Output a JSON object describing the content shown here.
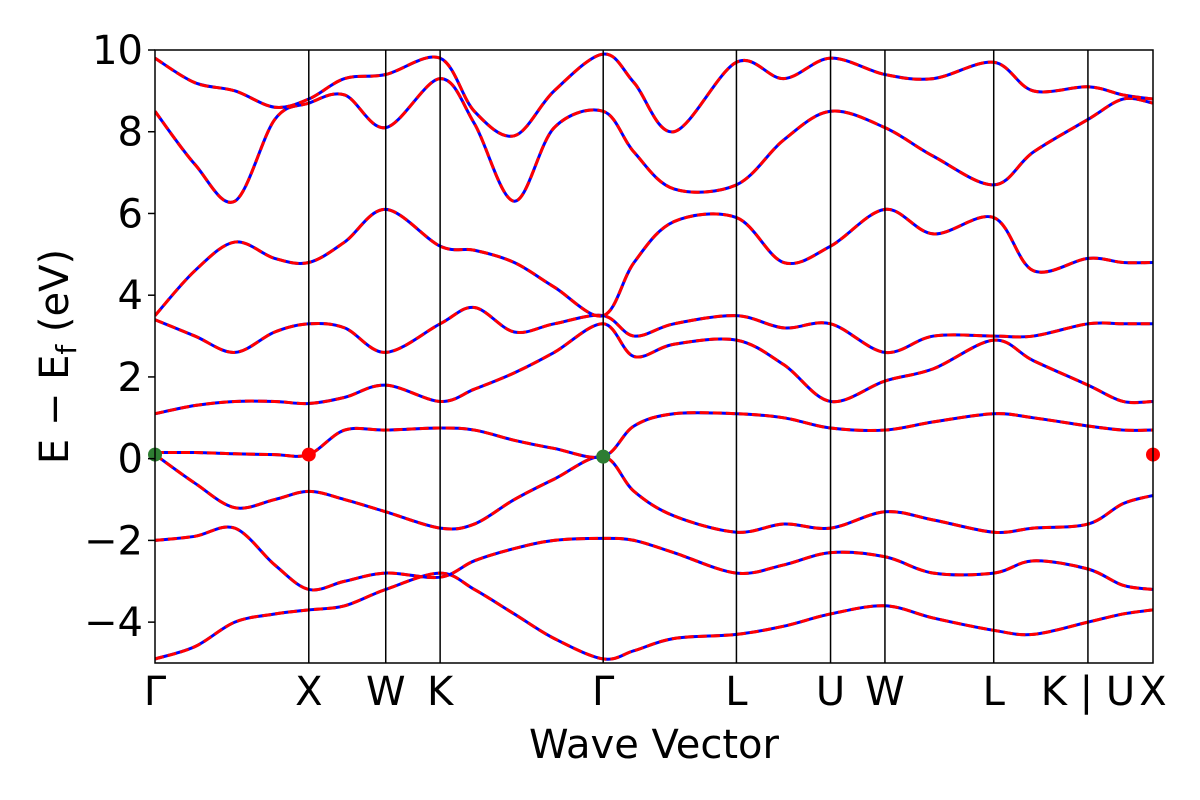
{
  "chart_data": {
    "type": "line",
    "title": "",
    "xlabel": "Wave Vector",
    "ylabel": "E − E",
    "ylabel_subscript": "f",
    "ylabel_unit": " (eV)",
    "ylim": [
      -5,
      10
    ],
    "yticks": [
      -4,
      -2,
      0,
      2,
      4,
      6,
      8,
      10
    ],
    "yticklabels": [
      "−4",
      "−2",
      "0",
      "2",
      "4",
      "6",
      "8",
      "10"
    ],
    "xlim": [
      0,
      1
    ],
    "kpoints": [
      {
        "label": "Γ",
        "x": 0.0
      },
      {
        "label": "X",
        "x": 0.1541
      },
      {
        "label": "W",
        "x": 0.2312
      },
      {
        "label": "K",
        "x": 0.2857
      },
      {
        "label": "Γ",
        "x": 0.4491
      },
      {
        "label": "L",
        "x": 0.5826
      },
      {
        "label": "U",
        "x": 0.6769
      },
      {
        "label": "W",
        "x": 0.7314
      },
      {
        "label": "L",
        "x": 0.8404
      },
      {
        "label": "K | U",
        "x": 0.9348
      },
      {
        "label": "X",
        "x": 1.0
      }
    ],
    "line_colors": {
      "red": "#ff0000",
      "blue": "#0000ff",
      "grid": "#000000"
    },
    "extrema_markers": [
      {
        "name": "vbm-gamma",
        "x": 0.0,
        "y": 0.1,
        "color": "#2e7d32"
      },
      {
        "name": "cbm-x",
        "x": 0.1541,
        "y": 0.1,
        "color": "#ff0000"
      },
      {
        "name": "vbm-gamma-mid",
        "x": 0.4491,
        "y": 0.05,
        "color": "#2e7d32"
      },
      {
        "name": "cbm-x-end",
        "x": 1.0,
        "y": 0.1,
        "color": "#ff0000"
      }
    ],
    "series": [
      {
        "x": [
          0,
          0.04,
          0.08,
          0.12,
          0.1541,
          0.19,
          0.2312,
          0.2857,
          0.32,
          0.36,
          0.4,
          0.4491,
          0.48,
          0.52,
          0.5826,
          0.63,
          0.6769,
          0.7314,
          0.78,
          0.8404,
          0.88,
          0.9348,
          0.97,
          1.0
        ],
        "y": [
          -4.9,
          -4.6,
          -4.0,
          -3.8,
          -3.7,
          -3.6,
          -3.2,
          -2.8,
          -3.2,
          -3.8,
          -4.4,
          -4.9,
          -4.7,
          -4.4,
          -4.3,
          -4.1,
          -3.8,
          -3.6,
          -3.9,
          -4.2,
          -4.3,
          -4.0,
          -3.8,
          -3.7
        ]
      },
      {
        "x": [
          0,
          0.04,
          0.08,
          0.12,
          0.1541,
          0.19,
          0.2312,
          0.2857,
          0.32,
          0.36,
          0.4,
          0.4491,
          0.48,
          0.52,
          0.5826,
          0.63,
          0.6769,
          0.7314,
          0.78,
          0.8404,
          0.88,
          0.9348,
          0.97,
          1.0
        ],
        "y": [
          -2.0,
          -1.9,
          -1.7,
          -2.6,
          -3.2,
          -3.0,
          -2.8,
          -2.9,
          -2.5,
          -2.2,
          -2.0,
          -1.95,
          -2.0,
          -2.3,
          -2.8,
          -2.6,
          -2.3,
          -2.4,
          -2.8,
          -2.8,
          -2.5,
          -2.7,
          -3.1,
          -3.2
        ]
      },
      {
        "x": [
          0,
          0.04,
          0.08,
          0.12,
          0.1541,
          0.19,
          0.2312,
          0.2857,
          0.32,
          0.36,
          0.4,
          0.4491,
          0.48,
          0.52,
          0.5826,
          0.63,
          0.6769,
          0.7314,
          0.78,
          0.8404,
          0.88,
          0.9348,
          0.97,
          1.0
        ],
        "y": [
          0.1,
          -0.6,
          -1.2,
          -1.0,
          -0.8,
          -1.0,
          -1.3,
          -1.7,
          -1.6,
          -1.0,
          -0.5,
          0.05,
          -0.8,
          -1.4,
          -1.8,
          -1.6,
          -1.7,
          -1.3,
          -1.5,
          -1.8,
          -1.7,
          -1.6,
          -1.1,
          -0.9
        ]
      },
      {
        "x": [
          0,
          0.04,
          0.08,
          0.12,
          0.1541,
          0.19,
          0.2312,
          0.2857,
          0.32,
          0.36,
          0.4,
          0.4491,
          0.48,
          0.52,
          0.5826,
          0.63,
          0.6769,
          0.7314,
          0.78,
          0.8404,
          0.88,
          0.9348,
          0.97,
          1.0
        ],
        "y": [
          0.15,
          0.15,
          0.12,
          0.1,
          0.1,
          0.7,
          0.7,
          0.75,
          0.7,
          0.45,
          0.25,
          0.05,
          0.8,
          1.1,
          1.1,
          1.0,
          0.75,
          0.7,
          0.9,
          1.1,
          1.0,
          0.8,
          0.7,
          0.7
        ]
      },
      {
        "x": [
          0,
          0.04,
          0.08,
          0.12,
          0.1541,
          0.19,
          0.2312,
          0.2857,
          0.32,
          0.36,
          0.4,
          0.4491,
          0.48,
          0.52,
          0.5826,
          0.63,
          0.6769,
          0.7314,
          0.78,
          0.8404,
          0.88,
          0.9348,
          0.97,
          1.0
        ],
        "y": [
          1.1,
          1.3,
          1.4,
          1.4,
          1.35,
          1.5,
          1.8,
          1.4,
          1.7,
          2.1,
          2.6,
          3.3,
          2.5,
          2.8,
          2.9,
          2.3,
          1.4,
          1.9,
          2.2,
          2.9,
          2.4,
          1.8,
          1.4,
          1.4
        ]
      },
      {
        "x": [
          0,
          0.04,
          0.08,
          0.12,
          0.1541,
          0.19,
          0.2312,
          0.2857,
          0.32,
          0.36,
          0.4,
          0.4491,
          0.48,
          0.52,
          0.5826,
          0.63,
          0.6769,
          0.7314,
          0.78,
          0.8404,
          0.88,
          0.9348,
          0.97,
          1.0
        ],
        "y": [
          3.4,
          3.0,
          2.6,
          3.1,
          3.3,
          3.2,
          2.6,
          3.3,
          3.7,
          3.1,
          3.3,
          3.5,
          3.0,
          3.3,
          3.5,
          3.2,
          3.3,
          2.6,
          3.0,
          3.0,
          3.0,
          3.3,
          3.3,
          3.3
        ]
      },
      {
        "x": [
          0,
          0.04,
          0.08,
          0.12,
          0.1541,
          0.19,
          0.2312,
          0.2857,
          0.32,
          0.36,
          0.4,
          0.4491,
          0.48,
          0.52,
          0.5826,
          0.63,
          0.6769,
          0.7314,
          0.78,
          0.8404,
          0.88,
          0.9348,
          0.97,
          1.0
        ],
        "y": [
          3.5,
          4.6,
          5.3,
          4.9,
          4.8,
          5.3,
          6.1,
          5.2,
          5.1,
          4.8,
          4.2,
          3.5,
          4.8,
          5.8,
          5.9,
          4.8,
          5.2,
          6.1,
          5.5,
          5.9,
          4.6,
          4.9,
          4.8,
          4.8
        ]
      },
      {
        "x": [
          0,
          0.04,
          0.08,
          0.12,
          0.1541,
          0.19,
          0.2312,
          0.2857,
          0.32,
          0.36,
          0.4,
          0.4491,
          0.48,
          0.52,
          0.5826,
          0.63,
          0.6769,
          0.7314,
          0.78,
          0.8404,
          0.88,
          0.9348,
          0.97,
          1.0
        ],
        "y": [
          8.5,
          7.2,
          6.3,
          8.3,
          8.7,
          8.9,
          8.1,
          9.3,
          8.2,
          6.3,
          8.1,
          8.5,
          7.5,
          6.6,
          6.7,
          7.8,
          8.5,
          8.1,
          7.4,
          6.7,
          7.5,
          8.3,
          8.8,
          8.7
        ]
      },
      {
        "x": [
          0,
          0.04,
          0.08,
          0.12,
          0.1541,
          0.19,
          0.2312,
          0.2857,
          0.32,
          0.36,
          0.4,
          0.4491,
          0.48,
          0.52,
          0.5826,
          0.63,
          0.6769,
          0.7314,
          0.78,
          0.8404,
          0.88,
          0.9348,
          0.97,
          1.0
        ],
        "y": [
          9.8,
          9.2,
          9.0,
          8.6,
          8.8,
          9.3,
          9.4,
          9.8,
          8.5,
          7.9,
          9.0,
          9.9,
          9.2,
          8.0,
          9.7,
          9.3,
          9.8,
          9.4,
          9.3,
          9.7,
          9.0,
          9.1,
          8.9,
          8.8
        ]
      }
    ]
  }
}
